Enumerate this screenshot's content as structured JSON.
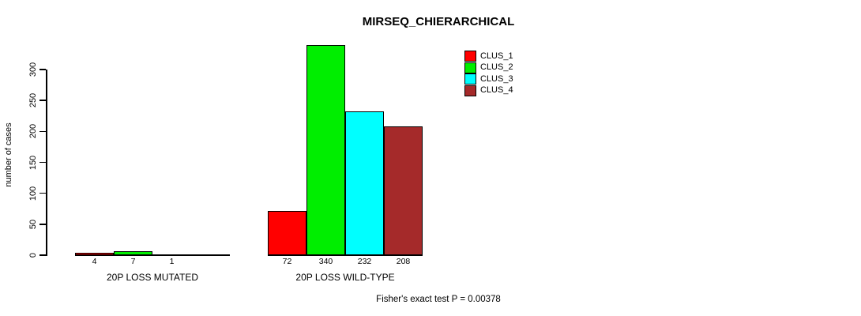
{
  "chart_data": {
    "type": "bar",
    "title": "MIRSEQ_CHIERARCHICAL",
    "xlabel": "",
    "ylabel": "number of cases",
    "yticks": [
      0,
      50,
      100,
      150,
      200,
      250,
      300
    ],
    "ylim": [
      0,
      340
    ],
    "grid": false,
    "legend_position": "top-right",
    "series_colors": {
      "red": "#ff0000",
      "green": "#00ee00",
      "cyan": "#00ffff",
      "brown": "#a52a2a"
    },
    "legend": [
      {
        "name": "CLUS_1",
        "color": "#ff0000"
      },
      {
        "name": "CLUS_2",
        "color": "#00ee00"
      },
      {
        "name": "CLUS_3",
        "color": "#00ffff"
      },
      {
        "name": "CLUS_4",
        "color": "#a52a2a"
      }
    ],
    "groups": [
      {
        "label": "20P LOSS MUTATED",
        "values": [
          4,
          7,
          1,
          0
        ],
        "value_labels": [
          "4",
          "7",
          "1",
          ""
        ]
      },
      {
        "label": "20P LOSS WILD-TYPE",
        "values": [
          72,
          340,
          232,
          208
        ],
        "value_labels": [
          "72",
          "340",
          "232",
          "208"
        ]
      }
    ],
    "annotation": "Fisher's exact test P = 0.00378"
  }
}
